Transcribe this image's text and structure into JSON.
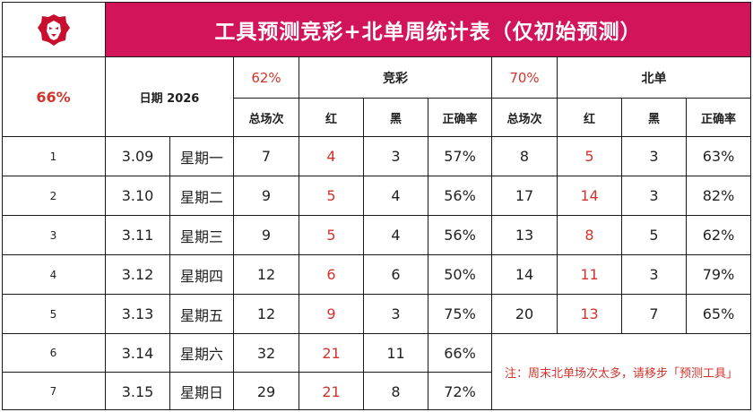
{
  "title": "工具预测竞彩+北单周统计表（仅初始预测）",
  "logo": {
    "icon": "lion-head-icon",
    "color": "#c8102e"
  },
  "overall_rate": "66%",
  "date_header": "日期  2026",
  "jingcai": {
    "rate": "62%",
    "label": "竞彩"
  },
  "beidan": {
    "rate": "70%",
    "label": "北单"
  },
  "sub_headers": {
    "total": "总场次",
    "red": "红",
    "black": "黑",
    "accuracy": "正确率"
  },
  "rows": [
    {
      "idx": "1",
      "date": "3.09",
      "weekday": "星期一",
      "jc_total": "7",
      "jc_red": "4",
      "jc_black": "3",
      "jc_rate": "57%",
      "bd_total": "8",
      "bd_red": "5",
      "bd_black": "3",
      "bd_rate": "63%"
    },
    {
      "idx": "2",
      "date": "3.10",
      "weekday": "星期二",
      "jc_total": "9",
      "jc_red": "5",
      "jc_black": "4",
      "jc_rate": "56%",
      "bd_total": "17",
      "bd_red": "14",
      "bd_black": "3",
      "bd_rate": "82%"
    },
    {
      "idx": "3",
      "date": "3.11",
      "weekday": "星期三",
      "jc_total": "9",
      "jc_red": "5",
      "jc_black": "4",
      "jc_rate": "56%",
      "bd_total": "13",
      "bd_red": "8",
      "bd_black": "5",
      "bd_rate": "62%"
    },
    {
      "idx": "4",
      "date": "3.12",
      "weekday": "星期四",
      "jc_total": "12",
      "jc_red": "6",
      "jc_black": "6",
      "jc_rate": "50%",
      "bd_total": "14",
      "bd_red": "11",
      "bd_black": "3",
      "bd_rate": "79%"
    },
    {
      "idx": "5",
      "date": "3.13",
      "weekday": "星期五",
      "jc_total": "12",
      "jc_red": "9",
      "jc_black": "3",
      "jc_rate": "75%",
      "bd_total": "20",
      "bd_red": "13",
      "bd_black": "7",
      "bd_rate": "65%"
    },
    {
      "idx": "6",
      "date": "3.14",
      "weekday": "星期六",
      "jc_total": "32",
      "jc_red": "21",
      "jc_black": "11",
      "jc_rate": "66%"
    },
    {
      "idx": "7",
      "date": "3.15",
      "weekday": "星期日",
      "jc_total": "29",
      "jc_red": "21",
      "jc_black": "8",
      "jc_rate": "72%"
    }
  ],
  "note": "注：周末北单场次太多，请移步「预测工具」",
  "colors": {
    "title_bg": "#d2145a",
    "accent_red": "#d0342c",
    "border": "#1a1a1a"
  }
}
